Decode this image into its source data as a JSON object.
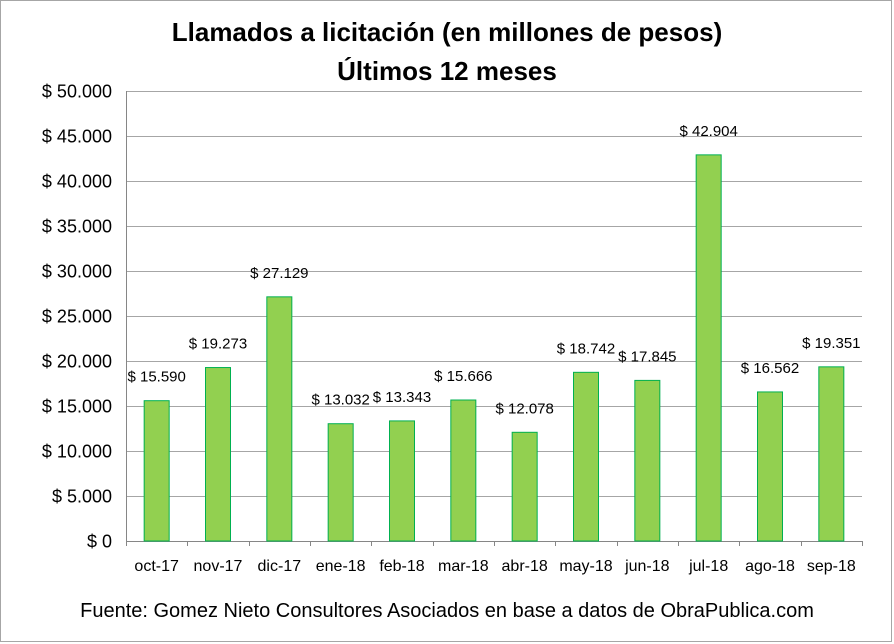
{
  "chart_data": {
    "type": "bar",
    "title": "Llamados a licitación (en millones de pesos)",
    "subtitle": "Últimos 12 meses",
    "categories": [
      "oct-17",
      "nov-17",
      "dic-17",
      "ene-18",
      "feb-18",
      "mar-18",
      "abr-18",
      "may-18",
      "jun-18",
      "jul-18",
      "ago-18",
      "sep-18"
    ],
    "values": [
      15590,
      19273,
      27129,
      13032,
      13343,
      15666,
      12078,
      18742,
      17845,
      42904,
      16562,
      19351
    ],
    "data_labels": [
      "$ 15.590",
      "$ 19.273",
      "$ 27.129",
      "$ 13.032",
      "$ 13.343",
      "$ 15.666",
      "$ 12.078",
      "$ 18.742",
      "$ 17.845",
      "$ 42.904",
      "$ 16.562",
      "$ 19.351"
    ],
    "yticks": [
      0,
      5000,
      10000,
      15000,
      20000,
      25000,
      30000,
      35000,
      40000,
      45000,
      50000
    ],
    "ytick_labels": [
      "$ 0",
      "$ 5.000",
      "$ 10.000",
      "$ 15.000",
      "$ 20.000",
      "$ 25.000",
      "$ 30.000",
      "$ 35.000",
      "$ 40.000",
      "$ 45.000",
      "$ 50.000"
    ],
    "ylim": [
      0,
      50000
    ],
    "grid": true,
    "legend": false,
    "bar_color": "#92d050",
    "bar_border_color": "#00b050",
    "grid_color": "#a6a6a6",
    "source_note": "Fuente: Gomez Nieto Consultores Asociados en base a datos de ObraPublica.com"
  }
}
